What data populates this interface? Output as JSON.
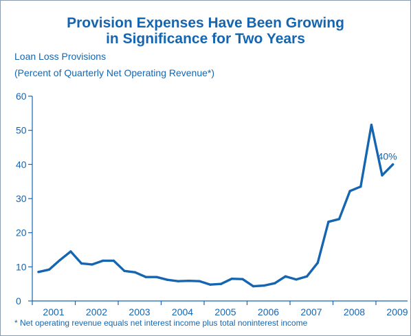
{
  "chart_data": {
    "type": "line",
    "title": "Provision Expenses Have Been Growing in Significance for Two Years",
    "title_lines": [
      "Provision Expenses Have Been Growing",
      "in Significance for Two Years"
    ],
    "ylabel_lines": [
      "Loan Loss Provisions",
      "(Percent of Quarterly Net Operating Revenue*)"
    ],
    "ylim": [
      0,
      60
    ],
    "y_ticks": [
      0,
      10,
      20,
      30,
      40,
      50,
      60
    ],
    "xlim": [
      2001,
      2009.5
    ],
    "x_tick_labels": [
      "2001",
      "2002",
      "2003",
      "2004",
      "2005",
      "2006",
      "2007",
      "2008",
      "2009"
    ],
    "grid": false,
    "line_color": "#1565b0",
    "series": [
      {
        "x": [
          2001.0,
          2001.25,
          2001.5,
          2001.75,
          2002.0,
          2002.25,
          2002.5,
          2002.75,
          2003.0,
          2003.25,
          2003.5,
          2003.75,
          2004.0,
          2004.25,
          2004.5,
          2004.75,
          2005.0,
          2005.25,
          2005.5,
          2005.75,
          2006.0,
          2006.25,
          2006.5,
          2006.75,
          2007.0,
          2007.25,
          2007.5,
          2007.75,
          2008.0,
          2008.25,
          2008.5,
          2008.75,
          2009.0,
          2009.25
        ],
        "y": [
          8.5,
          9.2,
          12.0,
          14.5,
          11.0,
          10.7,
          11.8,
          11.8,
          8.8,
          8.4,
          7.0,
          7.0,
          6.2,
          5.8,
          5.9,
          5.8,
          4.8,
          5.0,
          6.5,
          6.4,
          4.3,
          4.5,
          5.2,
          7.2,
          6.3,
          7.2,
          11.2,
          23.2,
          24.0,
          32.2,
          33.5,
          51.6,
          36.8,
          40.0
        ]
      }
    ],
    "annotations": [
      {
        "text": "40%",
        "x": 2009.25,
        "y": 40
      }
    ]
  },
  "footnote": "* Net operating revenue equals net interest income plus total noninterest income"
}
